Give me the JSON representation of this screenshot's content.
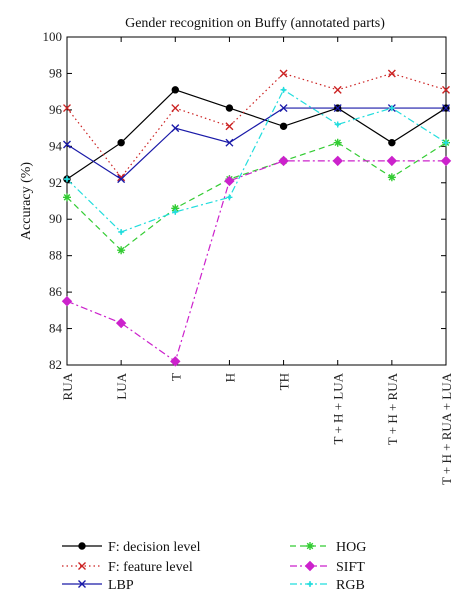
{
  "chart_data": {
    "type": "line",
    "title": "Gender recognition on Buffy (annotated parts)",
    "xlabel": "",
    "ylabel": "Accuracy (%)",
    "ylim": [
      82,
      100
    ],
    "yticks": [
      82,
      84,
      86,
      88,
      90,
      92,
      94,
      96,
      98,
      100
    ],
    "categories": [
      "RUA",
      "LUA",
      "T",
      "H",
      "TH",
      "T + H + LUA",
      "T + H + RUA",
      "T + H + RUA + LUA"
    ],
    "grid": false,
    "legend_position": "bottom",
    "series": [
      {
        "name": "F: decision level",
        "color": "#000000",
        "dash": "",
        "marker": "circle",
        "values": [
          92.2,
          94.2,
          97.1,
          96.1,
          95.1,
          96.1,
          94.2,
          96.1
        ]
      },
      {
        "name": "F: feature level",
        "color": "#cc2222",
        "dash": "1.5 3",
        "marker": "x",
        "values": [
          96.1,
          92.3,
          96.1,
          95.1,
          98.0,
          97.1,
          98.0,
          97.1
        ]
      },
      {
        "name": "LBP",
        "color": "#1a1aa8",
        "dash": "",
        "marker": "x",
        "values": [
          94.1,
          92.2,
          95.0,
          94.2,
          96.1,
          96.1,
          96.1,
          96.1
        ]
      },
      {
        "name": "HOG",
        "color": "#33cc33",
        "dash": "6 4",
        "marker": "asterisk",
        "values": [
          91.2,
          88.3,
          90.6,
          92.2,
          93.2,
          94.2,
          92.3,
          94.2
        ]
      },
      {
        "name": "SIFT",
        "color": "#cc22cc",
        "dash": "7 3 2 3",
        "marker": "diamond",
        "values": [
          85.5,
          84.3,
          82.2,
          92.1,
          93.2,
          93.2,
          93.2,
          93.2
        ]
      },
      {
        "name": "RGB",
        "color": "#22dddd",
        "dash": "7 3 2 3",
        "marker": "star",
        "values": [
          92.2,
          89.3,
          90.4,
          91.2,
          97.1,
          95.2,
          96.1,
          94.2
        ]
      }
    ]
  }
}
